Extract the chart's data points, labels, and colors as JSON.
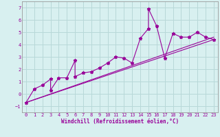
{
  "xlabel": "Windchill (Refroidissement éolien,°C)",
  "background_color": "#d8f0f0",
  "grid_color": "#b8d8d8",
  "line_color": "#990099",
  "scatter_x": [
    0,
    1,
    2,
    3,
    3,
    4,
    5,
    6,
    6,
    7,
    8,
    9,
    10,
    11,
    12,
    13,
    14,
    15,
    15,
    16,
    17,
    18,
    19,
    20,
    21,
    22,
    23
  ],
  "scatter_y": [
    -0.7,
    0.4,
    0.7,
    1.2,
    0.3,
    1.3,
    1.3,
    2.7,
    1.4,
    1.7,
    1.8,
    2.1,
    2.5,
    3.0,
    2.9,
    2.5,
    4.5,
    5.3,
    6.9,
    5.5,
    2.9,
    4.9,
    4.6,
    4.6,
    5.0,
    4.6,
    4.4
  ],
  "line1_x": [
    0,
    23
  ],
  "line1_y": [
    -0.7,
    4.4
  ],
  "line2_x": [
    0,
    23
  ],
  "line2_y": [
    -0.7,
    4.6
  ],
  "ylim": [
    -1.5,
    7.5
  ],
  "xlim": [
    -0.5,
    23.5
  ],
  "yticks": [
    -1,
    0,
    1,
    2,
    3,
    4,
    5,
    6,
    7
  ],
  "xticks": [
    0,
    1,
    2,
    3,
    4,
    5,
    6,
    7,
    8,
    9,
    10,
    11,
    12,
    13,
    14,
    15,
    16,
    17,
    18,
    19,
    20,
    21,
    22,
    23
  ],
  "tick_fontsize": 5.0,
  "xlabel_fontsize": 5.5
}
